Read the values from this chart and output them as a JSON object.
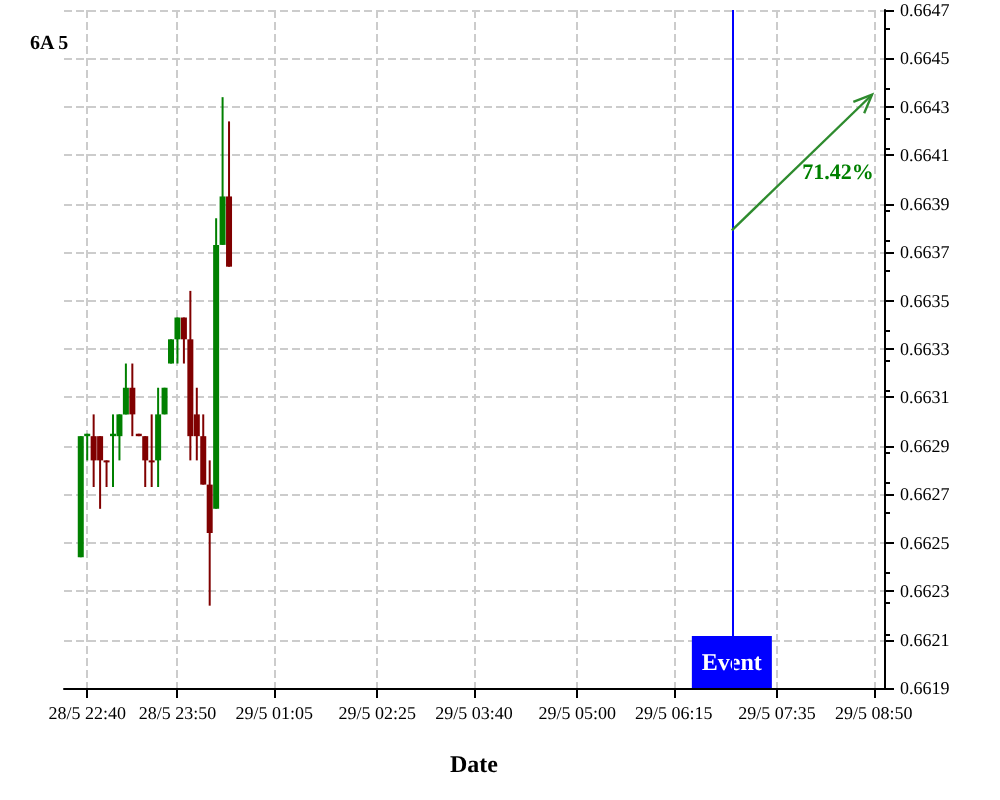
{
  "chart_data": {
    "type": "candlestick",
    "title": "6A 5",
    "xlabel": "Date",
    "x": [
      "--05-28T22:35",
      "--05-28T22:40",
      "--05-28T22:45",
      "--05-28T22:50",
      "--05-28T22:55",
      "--05-28T23:00",
      "--05-28T23:05",
      "--05-28T23:10",
      "--05-28T23:15",
      "--05-28T23:20",
      "--05-28T23:25",
      "--05-28T23:30",
      "--05-28T23:35",
      "--05-28T23:40",
      "--05-28T23:45",
      "--05-28T23:50",
      "--05-28T23:55",
      "--05-29T00:00",
      "--05-29T00:05",
      "--05-29T00:10",
      "--05-29T00:15",
      "--05-29T00:20",
      "--05-29T00:25",
      "--05-29T00:30"
    ],
    "ohlc": [
      [
        0.66244,
        0.66294,
        0.66244,
        0.66294
      ],
      [
        0.66294,
        0.66295,
        0.66284,
        0.66295
      ],
      [
        0.66294,
        0.66303,
        0.66273,
        0.66284
      ],
      [
        0.66294,
        0.66294,
        0.66264,
        0.66284
      ],
      [
        0.66284,
        0.66284,
        0.66273,
        0.66284
      ],
      [
        0.66294,
        0.66303,
        0.66273,
        0.66295
      ],
      [
        0.66294,
        0.66303,
        0.66284,
        0.66303
      ],
      [
        0.66303,
        0.66324,
        0.66303,
        0.66314
      ],
      [
        0.66314,
        0.66324,
        0.66294,
        0.66303
      ],
      [
        0.66295,
        0.66295,
        0.66294,
        0.66294
      ],
      [
        0.66294,
        0.66294,
        0.66273,
        0.66284
      ],
      [
        0.66284,
        0.66303,
        0.66273,
        0.66284
      ],
      [
        0.66284,
        0.66314,
        0.66273,
        0.66303
      ],
      [
        0.66303,
        0.66314,
        0.66303,
        0.66314
      ],
      [
        0.66324,
        0.66334,
        0.66324,
        0.66334
      ],
      [
        0.66334,
        0.66343,
        0.66324,
        0.66343
      ],
      [
        0.66343,
        0.66343,
        0.66324,
        0.66334
      ],
      [
        0.66334,
        0.66354,
        0.66284,
        0.66294
      ],
      [
        0.66303,
        0.66314,
        0.66284,
        0.66294
      ],
      [
        0.66294,
        0.66303,
        0.66274,
        0.66274
      ],
      [
        0.66274,
        0.66284,
        0.66224,
        0.66254
      ],
      [
        0.66264,
        0.66384,
        0.66264,
        0.66373
      ],
      [
        0.66373,
        0.66434,
        0.66373,
        0.66393
      ],
      [
        0.66393,
        0.66424,
        0.66364,
        0.66364
      ]
    ],
    "colors": [
      "#008000",
      "#008000",
      "#800000",
      "#800000",
      "#800000",
      "#008000",
      "#008000",
      "#008000",
      "#800000",
      "#800000",
      "#800000",
      "#800000",
      "#008000",
      "#008000",
      "#008000",
      "#008000",
      "#800000",
      "#800000",
      "#800000",
      "#800000",
      "#800000",
      "#008000",
      "#008000",
      "#800000"
    ],
    "xlim": [
      "--05-28T22:22",
      "--05-29T08:58"
    ],
    "xticks": [
      {
        "value": "--05-28T22:40",
        "label": "28/5 22:40"
      },
      {
        "value": "--05-28T23:50",
        "label": "28/5 23:50"
      },
      {
        "value": "--05-29T01:05",
        "label": "29/5 01:05"
      },
      {
        "value": "--05-29T02:25",
        "label": "29/5 02:25"
      },
      {
        "value": "--05-29T03:40",
        "label": "29/5 03:40"
      },
      {
        "value": "--05-29T05:00",
        "label": "29/5 05:00"
      },
      {
        "value": "--05-29T06:15",
        "label": "29/5 06:15"
      },
      {
        "value": "--05-29T07:35",
        "label": "29/5 07:35"
      },
      {
        "value": "--05-29T08:50",
        "label": "29/5 08:50"
      }
    ],
    "ylim": [
      0.6619,
      0.6647
    ],
    "yticks": [
      0.6619,
      0.6621,
      0.6623,
      0.6625,
      0.6627,
      0.6629,
      0.6631,
      0.6633,
      0.6635,
      0.6637,
      0.6639,
      0.6641,
      0.6643,
      0.6645,
      0.6647
    ],
    "ref_lines": [
      {
        "axis": "x",
        "value": "--05-29T07:00",
        "label": "Event",
        "color": "#0000ff"
      }
    ],
    "annotations": [
      "71.42%"
    ],
    "grid": true
  }
}
